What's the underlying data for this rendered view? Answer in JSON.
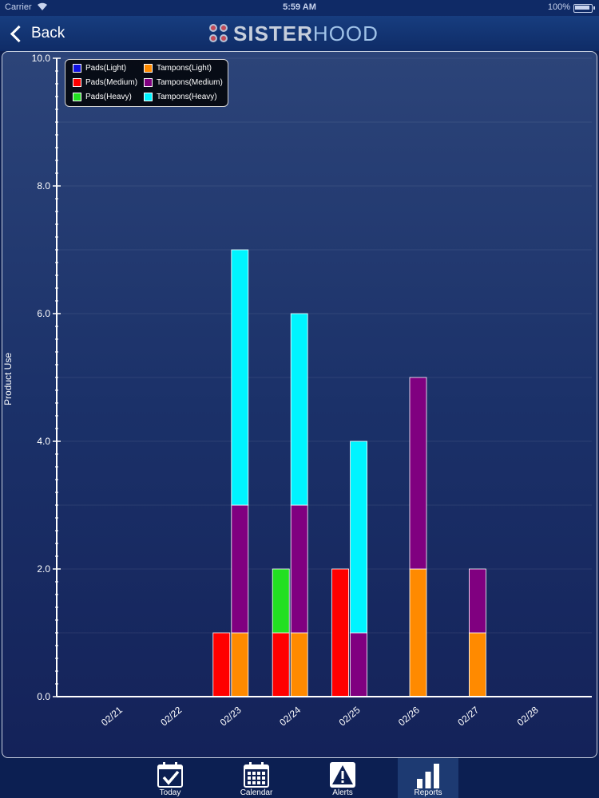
{
  "status_bar": {
    "carrier": "Carrier",
    "time": "5:59 AM",
    "battery": "100%"
  },
  "nav": {
    "back_label": "Back",
    "logo_prefix": "SISTER",
    "logo_suffix": "HOOD"
  },
  "colors": {
    "pads_light": "#1010e0",
    "pads_medium": "#ff0000",
    "pads_heavy": "#22e022",
    "tampons_light": "#ff8a00",
    "tampons_medium": "#800080",
    "tampons_heavy": "#00f4ff"
  },
  "chart_data": {
    "type": "bar",
    "stacked": true,
    "ylabel": "Product Use",
    "xlabel": "",
    "ylim": [
      0,
      10
    ],
    "yticks": [
      "0.0",
      "2.0",
      "4.0",
      "6.0",
      "8.0",
      "10.0"
    ],
    "categories": [
      "02/21",
      "02/22",
      "02/23",
      "02/24",
      "02/25",
      "02/26",
      "02/27",
      "02/28"
    ],
    "legend_position": "top-left",
    "grid": true,
    "series": [
      {
        "name": "Pads(Light)",
        "group": "pads",
        "color_key": "pads_light",
        "values": [
          0,
          0,
          0,
          0,
          0,
          0,
          0,
          0
        ]
      },
      {
        "name": "Pads(Medium)",
        "group": "pads",
        "color_key": "pads_medium",
        "values": [
          0,
          0,
          1,
          1,
          2,
          0,
          0,
          0
        ]
      },
      {
        "name": "Pads(Heavy)",
        "group": "pads",
        "color_key": "pads_heavy",
        "values": [
          0,
          0,
          0,
          1,
          0,
          0,
          0,
          0
        ]
      },
      {
        "name": "Tampons(Light)",
        "group": "tampons",
        "color_key": "tampons_light",
        "values": [
          0,
          0,
          1,
          1,
          0,
          2,
          1,
          0
        ]
      },
      {
        "name": "Tampons(Medium)",
        "group": "tampons",
        "color_key": "tampons_medium",
        "values": [
          0,
          0,
          2,
          2,
          1,
          3,
          1,
          0
        ]
      },
      {
        "name": "Tampons(Heavy)",
        "group": "tampons",
        "color_key": "tampons_heavy",
        "values": [
          0,
          0,
          4,
          3,
          3,
          0,
          0,
          0
        ]
      }
    ]
  },
  "tabs": [
    {
      "label": "Today",
      "icon": "today-check-icon"
    },
    {
      "label": "Calendar",
      "icon": "calendar-icon"
    },
    {
      "label": "Alerts",
      "icon": "alert-icon"
    },
    {
      "label": "Reports",
      "icon": "reports-chart-icon",
      "active": true
    }
  ]
}
